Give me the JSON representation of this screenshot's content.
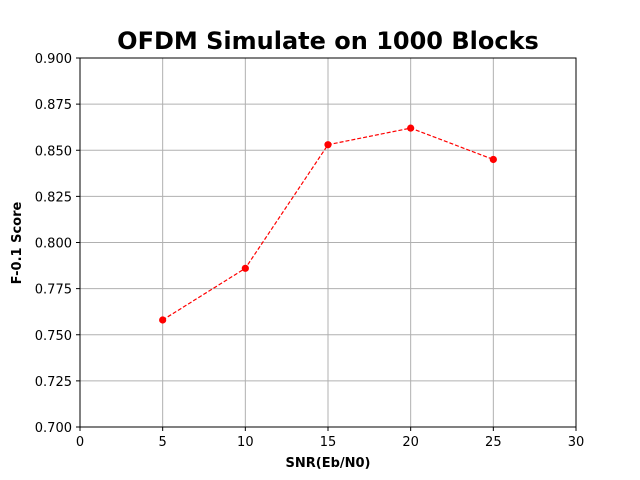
{
  "chart_data": {
    "type": "line",
    "title": "OFDM Simulate on 1000 Blocks",
    "xlabel": "SNR(Eb/N0)",
    "ylabel": "F-0.1 Score",
    "xlim": [
      0,
      30
    ],
    "ylim": [
      0.7,
      0.9
    ],
    "xticks": [
      "0",
      "5",
      "10",
      "15",
      "20",
      "25",
      "30"
    ],
    "yticks": [
      "0.700",
      "0.725",
      "0.750",
      "0.775",
      "0.800",
      "0.825",
      "0.850",
      "0.875",
      "0.900"
    ],
    "grid": true,
    "series": [
      {
        "x": [
          5,
          10,
          15,
          20,
          25
        ],
        "y": [
          0.758,
          0.786,
          0.853,
          0.862,
          0.845
        ],
        "color": "#ff0000",
        "line_style": "dashed",
        "marker": "circle"
      }
    ]
  }
}
